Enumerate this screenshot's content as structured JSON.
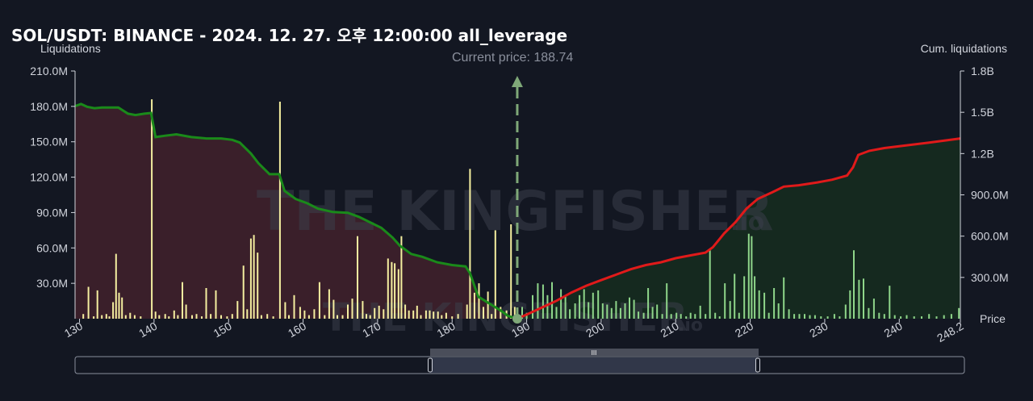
{
  "title": "SOL/USDT: BINANCE - 2024. 12. 27. 오후 12:00:00 all_leverage",
  "watermark": {
    "text_main": "THE KINGFISHER",
    "text_suffix": ".io"
  },
  "range_slider": {
    "handle_label": "III"
  },
  "colors": {
    "bg": "#131722",
    "long_area": "#3a1f2a",
    "short_area": "#15291f",
    "long_line": "#1a8a1a",
    "short_line": "#e01a1a",
    "bar_left": "#f5efa0",
    "bar_right": "#8fd68a",
    "current_price_line": "#7fa878"
  },
  "chart_data": {
    "type": "bar",
    "title": "SOL/USDT: BINANCE - 2024. 12. 27. 오후 12:00:00 all_leverage",
    "xlabel": "Price",
    "ylabel": "Liquidations",
    "y2label": "Cum. liquidations",
    "xlim": [
      129.4,
      248.2
    ],
    "ylim": [
      0,
      210000000
    ],
    "y2lim": [
      0,
      1800000000
    ],
    "x_ticks": [
      "130",
      "140",
      "150",
      "160",
      "170",
      "180",
      "190",
      "200",
      "210",
      "220",
      "230",
      "240",
      "248.2"
    ],
    "y_ticks": [
      "30.0M",
      "60.0M",
      "90.0M",
      "120.0M",
      "150.0M",
      "180.0M",
      "210.0M"
    ],
    "y2_ticks": [
      "300.0M",
      "600.0M",
      "900.0M",
      "1.2B",
      "1.5B",
      "1.8B"
    ],
    "current_price_label": "Current price: 188.74",
    "current_price": 188.74,
    "grid": false,
    "bars": [
      [
        130.5,
        4
      ],
      [
        131.2,
        27
      ],
      [
        131.9,
        2
      ],
      [
        132.4,
        24
      ],
      [
        133.0,
        3
      ],
      [
        133.6,
        4
      ],
      [
        134.0,
        2
      ],
      [
        134.5,
        14
      ],
      [
        134.9,
        55
      ],
      [
        135.3,
        22
      ],
      [
        135.7,
        18
      ],
      [
        136.2,
        3
      ],
      [
        136.8,
        5
      ],
      [
        137.4,
        3
      ],
      [
        138.2,
        2
      ],
      [
        139.7,
        186
      ],
      [
        140.2,
        6
      ],
      [
        140.7,
        3
      ],
      [
        141.5,
        4
      ],
      [
        142.0,
        2
      ],
      [
        142.7,
        7
      ],
      [
        143.2,
        3
      ],
      [
        143.8,
        31
      ],
      [
        144.3,
        12
      ],
      [
        145.1,
        3
      ],
      [
        145.7,
        4
      ],
      [
        146.4,
        2
      ],
      [
        147.0,
        26
      ],
      [
        147.6,
        4
      ],
      [
        148.3,
        24
      ],
      [
        149.0,
        3
      ],
      [
        149.8,
        2
      ],
      [
        150.5,
        4
      ],
      [
        151.2,
        15
      ],
      [
        152.0,
        45
      ],
      [
        152.5,
        8
      ],
      [
        153.0,
        68
      ],
      [
        153.4,
        71
      ],
      [
        153.9,
        56
      ],
      [
        154.4,
        3
      ],
      [
        155.2,
        4
      ],
      [
        156.0,
        2
      ],
      [
        156.9,
        184
      ],
      [
        157.6,
        14
      ],
      [
        158.1,
        3
      ],
      [
        158.8,
        20
      ],
      [
        159.6,
        10
      ],
      [
        160.2,
        7
      ],
      [
        160.8,
        3
      ],
      [
        161.5,
        8
      ],
      [
        162.2,
        31
      ],
      [
        162.9,
        3
      ],
      [
        163.5,
        25
      ],
      [
        164.1,
        16
      ],
      [
        164.6,
        3
      ],
      [
        165.3,
        3
      ],
      [
        166.0,
        12
      ],
      [
        166.6,
        17
      ],
      [
        167.3,
        70
      ],
      [
        168.0,
        15
      ],
      [
        168.5,
        4
      ],
      [
        169.0,
        3
      ],
      [
        169.6,
        9
      ],
      [
        170.2,
        11
      ],
      [
        170.8,
        8
      ],
      [
        171.4,
        51
      ],
      [
        171.9,
        48
      ],
      [
        172.3,
        47
      ],
      [
        172.8,
        42
      ],
      [
        173.2,
        70
      ],
      [
        173.7,
        12
      ],
      [
        174.2,
        7
      ],
      [
        174.8,
        7
      ],
      [
        175.3,
        11
      ],
      [
        175.8,
        3
      ],
      [
        176.5,
        7
      ],
      [
        177.0,
        7
      ],
      [
        177.5,
        6
      ],
      [
        178.1,
        6
      ],
      [
        178.6,
        3
      ],
      [
        179.2,
        5
      ],
      [
        180.0,
        2
      ],
      [
        180.8,
        4
      ],
      [
        182.0,
        12
      ],
      [
        182.4,
        127
      ],
      [
        183.0,
        22
      ],
      [
        183.6,
        30
      ],
      [
        184.2,
        10
      ],
      [
        184.8,
        23
      ],
      [
        185.3,
        4
      ],
      [
        185.8,
        75
      ],
      [
        186.5,
        10
      ],
      [
        187.3,
        7
      ],
      [
        187.9,
        80
      ],
      [
        188.4,
        10
      ],
      [
        189.4,
        10
      ],
      [
        190.0,
        5
      ],
      [
        190.8,
        20
      ],
      [
        191.5,
        30
      ],
      [
        192.2,
        29
      ],
      [
        192.8,
        20
      ],
      [
        193.4,
        31
      ],
      [
        194.0,
        10
      ],
      [
        194.6,
        25
      ],
      [
        195.2,
        19
      ],
      [
        195.8,
        8
      ],
      [
        196.5,
        13
      ],
      [
        197.1,
        20
      ],
      [
        197.7,
        25
      ],
      [
        198.3,
        14
      ],
      [
        198.9,
        22
      ],
      [
        199.6,
        24
      ],
      [
        200.2,
        13
      ],
      [
        200.8,
        12
      ],
      [
        201.4,
        9
      ],
      [
        202.0,
        15
      ],
      [
        202.6,
        9
      ],
      [
        203.2,
        13
      ],
      [
        203.8,
        18
      ],
      [
        204.4,
        16
      ],
      [
        205.0,
        6
      ],
      [
        205.7,
        5
      ],
      [
        206.3,
        26
      ],
      [
        206.9,
        10
      ],
      [
        207.5,
        12
      ],
      [
        208.2,
        4
      ],
      [
        208.8,
        30
      ],
      [
        209.4,
        4
      ],
      [
        210.1,
        5
      ],
      [
        210.7,
        4
      ],
      [
        211.4,
        2
      ],
      [
        212.0,
        5
      ],
      [
        212.6,
        4
      ],
      [
        213.3,
        11
      ],
      [
        214.0,
        4
      ],
      [
        214.6,
        58
      ],
      [
        215.3,
        5
      ],
      [
        215.9,
        2
      ],
      [
        216.6,
        30
      ],
      [
        217.3,
        15
      ],
      [
        217.9,
        38
      ],
      [
        218.5,
        5
      ],
      [
        219.2,
        36
      ],
      [
        219.8,
        72
      ],
      [
        220.2,
        70
      ],
      [
        220.6,
        36
      ],
      [
        221.2,
        24
      ],
      [
        221.9,
        22
      ],
      [
        222.5,
        5
      ],
      [
        223.2,
        26
      ],
      [
        223.8,
        13
      ],
      [
        224.5,
        35
      ],
      [
        225.2,
        8
      ],
      [
        225.9,
        4
      ],
      [
        226.6,
        4
      ],
      [
        227.3,
        4
      ],
      [
        228.0,
        3
      ],
      [
        228.7,
        3
      ],
      [
        229.5,
        2
      ],
      [
        230.4,
        2
      ],
      [
        231.3,
        4
      ],
      [
        232.0,
        2
      ],
      [
        232.8,
        12
      ],
      [
        233.4,
        24
      ],
      [
        233.9,
        58
      ],
      [
        234.6,
        33
      ],
      [
        235.2,
        34
      ],
      [
        235.9,
        9
      ],
      [
        236.6,
        17
      ],
      [
        237.3,
        5
      ],
      [
        238.0,
        4
      ],
      [
        238.7,
        28
      ],
      [
        239.4,
        3
      ],
      [
        240.2,
        2
      ],
      [
        241.0,
        3
      ],
      [
        242.0,
        2
      ],
      [
        243.0,
        2
      ],
      [
        244.0,
        4
      ],
      [
        245.0,
        2
      ],
      [
        246.0,
        3
      ],
      [
        247.0,
        4
      ],
      [
        248.0,
        9
      ]
    ],
    "cum_long": [
      [
        129.4,
        1.545
      ],
      [
        130.2,
        1.56
      ],
      [
        131.0,
        1.54
      ],
      [
        132.0,
        1.53
      ],
      [
        133.0,
        1.535
      ],
      [
        135.2,
        1.535
      ],
      [
        136.5,
        1.49
      ],
      [
        137.5,
        1.48
      ],
      [
        138.7,
        1.49
      ],
      [
        139.6,
        1.495
      ],
      [
        140.2,
        1.32
      ],
      [
        141.5,
        1.33
      ],
      [
        143.0,
        1.34
      ],
      [
        145.0,
        1.32
      ],
      [
        147.0,
        1.31
      ],
      [
        149.0,
        1.31
      ],
      [
        150.5,
        1.3
      ],
      [
        151.5,
        1.28
      ],
      [
        153.0,
        1.2
      ],
      [
        154.0,
        1.13
      ],
      [
        155.5,
        1.05
      ],
      [
        156.8,
        1.05
      ],
      [
        157.5,
        0.93
      ],
      [
        159.0,
        0.87
      ],
      [
        160.5,
        0.84
      ],
      [
        162.0,
        0.8
      ],
      [
        164.0,
        0.775
      ],
      [
        166.0,
        0.77
      ],
      [
        167.5,
        0.74
      ],
      [
        169.0,
        0.7
      ],
      [
        170.5,
        0.66
      ],
      [
        172.0,
        0.59
      ],
      [
        173.0,
        0.53
      ],
      [
        174.5,
        0.47
      ],
      [
        176.0,
        0.45
      ],
      [
        178.0,
        0.41
      ],
      [
        180.0,
        0.39
      ],
      [
        181.8,
        0.38
      ],
      [
        182.4,
        0.33
      ],
      [
        183.5,
        0.16
      ],
      [
        185.0,
        0.11
      ],
      [
        186.5,
        0.06
      ],
      [
        187.5,
        0.02
      ],
      [
        188.74,
        0.0
      ]
    ],
    "cum_short": [
      [
        188.74,
        0.0
      ],
      [
        190.0,
        0.03
      ],
      [
        192.0,
        0.08
      ],
      [
        194.0,
        0.13
      ],
      [
        196.0,
        0.19
      ],
      [
        198.0,
        0.24
      ],
      [
        200.0,
        0.28
      ],
      [
        202.0,
        0.32
      ],
      [
        204.0,
        0.36
      ],
      [
        206.0,
        0.39
      ],
      [
        208.0,
        0.41
      ],
      [
        210.0,
        0.44
      ],
      [
        212.0,
        0.46
      ],
      [
        214.0,
        0.48
      ],
      [
        215.0,
        0.52
      ],
      [
        216.5,
        0.62
      ],
      [
        218.0,
        0.7
      ],
      [
        219.5,
        0.8
      ],
      [
        221.0,
        0.87
      ],
      [
        223.0,
        0.92
      ],
      [
        224.5,
        0.96
      ],
      [
        226.5,
        0.97
      ],
      [
        229.0,
        0.99
      ],
      [
        231.0,
        1.01
      ],
      [
        233.0,
        1.04
      ],
      [
        233.8,
        1.1
      ],
      [
        234.5,
        1.19
      ],
      [
        236.0,
        1.22
      ],
      [
        238.0,
        1.24
      ],
      [
        241.0,
        1.26
      ],
      [
        244.0,
        1.28
      ],
      [
        248.2,
        1.31
      ]
    ]
  }
}
